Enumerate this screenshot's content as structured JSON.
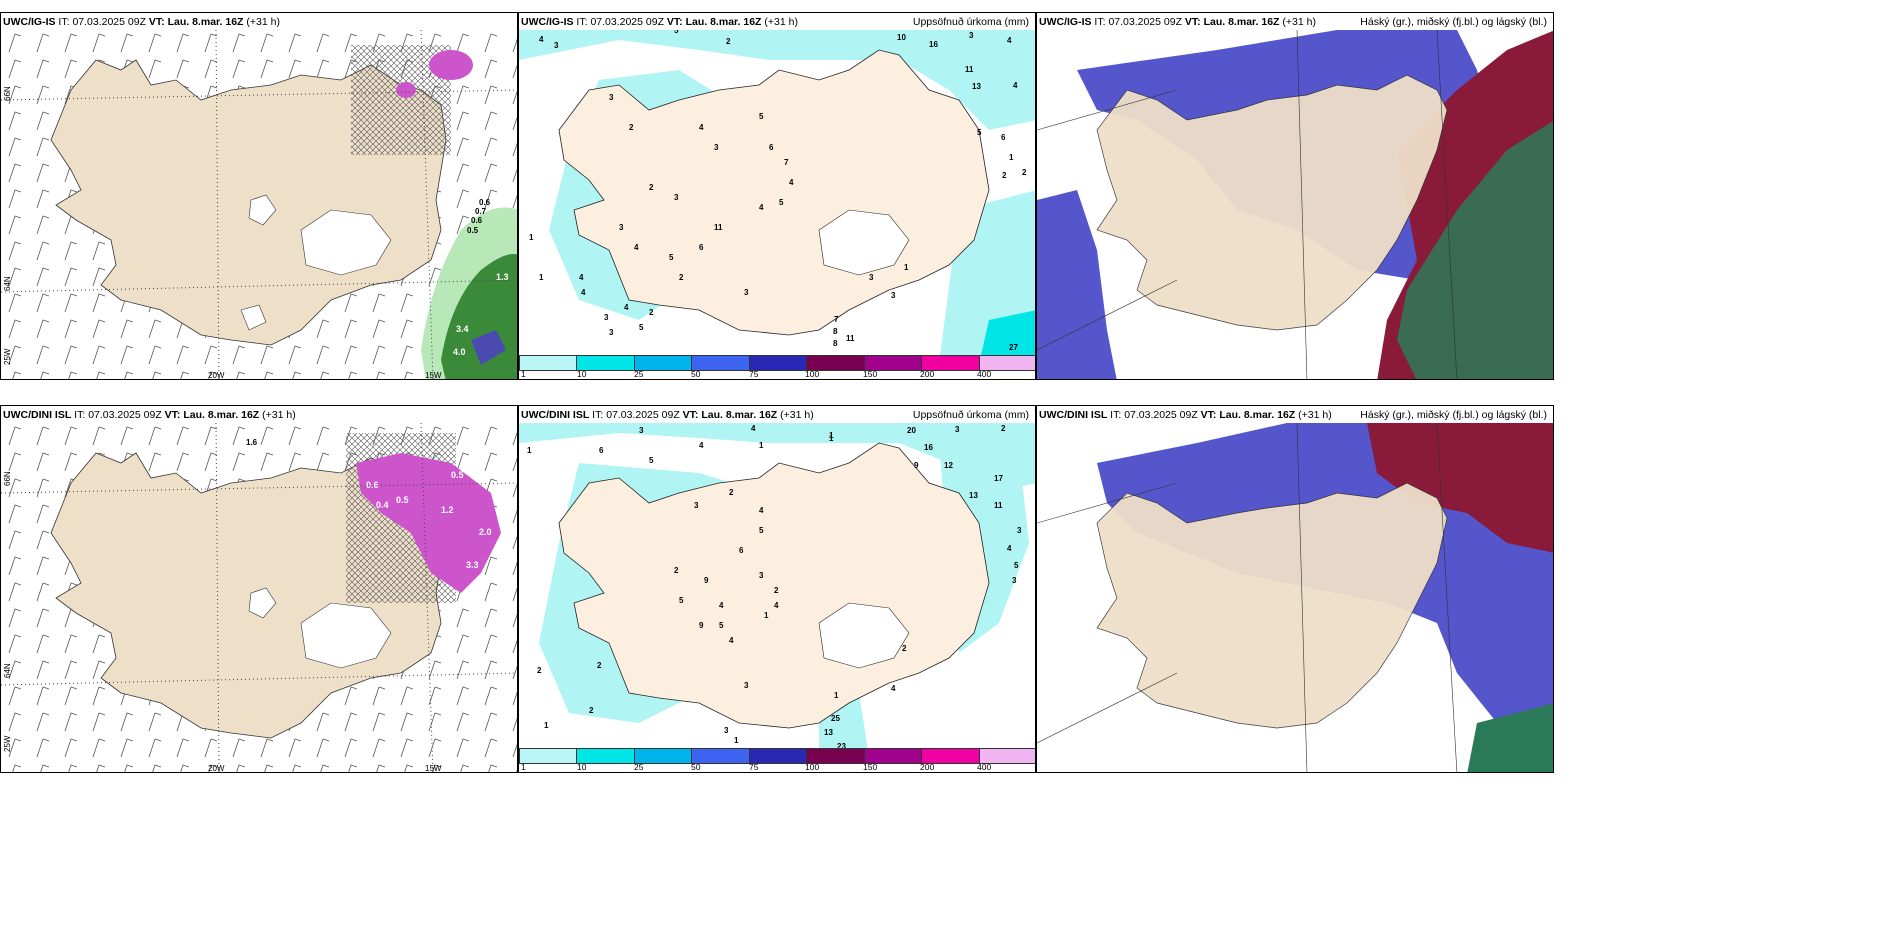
{
  "panels": {
    "p1": {
      "model": "UWC/IG-IS",
      "it_label": "IT:",
      "it": "07.03.2025 09Z",
      "vt_label": "VT:",
      "vt": "Lau. 8.mar. 16Z",
      "lead": "(+31 h)"
    },
    "p2": {
      "model": "UWC/IG-IS",
      "it_label": "IT:",
      "it": "07.03.2025 09Z",
      "vt_label": "VT:",
      "vt": "Lau. 8.mar. 16Z",
      "lead": "(+31 h)",
      "title": "Uppsöfnuð úrkoma (mm)"
    },
    "p3": {
      "model": "UWC/IG-IS",
      "it_label": "IT:",
      "it": "07.03.2025 09Z",
      "vt_label": "VT:",
      "vt": "Lau. 8.mar. 16Z",
      "lead": "(+31 h)",
      "title": "Háský (gr.), miðský (fj.bl.) og lágský (bl.)"
    },
    "p4": {
      "model": "UWC/DINI ISL",
      "it_label": "IT:",
      "it": "07.03.2025 09Z",
      "vt_label": "VT:",
      "vt": "Lau. 8.mar. 16Z",
      "lead": "(+31 h)"
    },
    "p5": {
      "model": "UWC/DINI ISL",
      "it_label": "IT:",
      "it": "07.03.2025 09Z",
      "vt_label": "VT:",
      "vt": "Lau. 8.mar. 16Z",
      "lead": "(+31 h)",
      "title": "Uppsöfnuð úrkoma (mm)"
    },
    "p6": {
      "model": "UWC/DINI ISL",
      "it_label": "IT:",
      "it": "07.03.2025 09Z",
      "vt_label": "VT:",
      "vt": "Lau. 8.mar. 16Z",
      "lead": "(+31 h)",
      "title": "Háský (gr.), miðský (fj.bl.) og lágský (bl.)"
    }
  },
  "axes": {
    "lat_66": "66N",
    "lat_64": "64N",
    "lon_25": "25W",
    "lon_20": "20W",
    "lon_15": "15W"
  },
  "colorbar": {
    "labels": [
      "1",
      "10",
      "25",
      "50",
      "75",
      "100",
      "150",
      "200",
      "400"
    ],
    "colors": [
      "#b8f5f5",
      "#00e6e6",
      "#00b4ec",
      "#3c64f0",
      "#2828b4",
      "#780050",
      "#a0008c",
      "#f000a0",
      "#f0b4f0"
    ]
  },
  "colors": {
    "land": "#eedfc9",
    "precip": "#b0f4f4",
    "low_cloud": "#5555cc",
    "high_cloud": "#8a1a3a",
    "mid_cloud": "#2a7a5a"
  },
  "precip_values": {
    "top": [
      "4",
      "3",
      "5",
      "2",
      "3",
      "2",
      "3",
      "4",
      "5",
      "6",
      "7",
      "3",
      "2",
      "3",
      "4",
      "5",
      "6",
      "4",
      "3",
      "4",
      "4",
      "11",
      "5",
      "4",
      "3",
      "2",
      "1",
      "1",
      "5",
      "4",
      "2",
      "3",
      "10",
      "16",
      "3",
      "4",
      "11",
      "13",
      "4",
      "5",
      "6",
      "1",
      "2",
      "2",
      "27",
      "7",
      "8",
      "8",
      "11",
      "3",
      "1",
      "3"
    ],
    "bottom": [
      "1",
      "3",
      "4",
      "4",
      "1",
      "1",
      "6",
      "5",
      "3",
      "2",
      "4",
      "5",
      "6",
      "9",
      "2",
      "5",
      "4",
      "3",
      "4",
      "2",
      "9",
      "5",
      "4",
      "1",
      "2",
      "1",
      "2",
      "2",
      "1",
      "20",
      "3",
      "2",
      "16",
      "12",
      "9",
      "17",
      "13",
      "11",
      "3",
      "4",
      "5",
      "3",
      "1",
      "25",
      "13",
      "23",
      "4",
      "2",
      "3",
      "3",
      "1"
    ]
  },
  "wind_values": {
    "top": [
      "0.6",
      "0.7",
      "0.6",
      "0.5",
      "3.4",
      "4.0",
      "1.3"
    ],
    "bottom": [
      "0.6",
      "1.6",
      "0.5",
      "0.5",
      "0.4",
      "2.0",
      "3.3",
      "1.2"
    ]
  }
}
